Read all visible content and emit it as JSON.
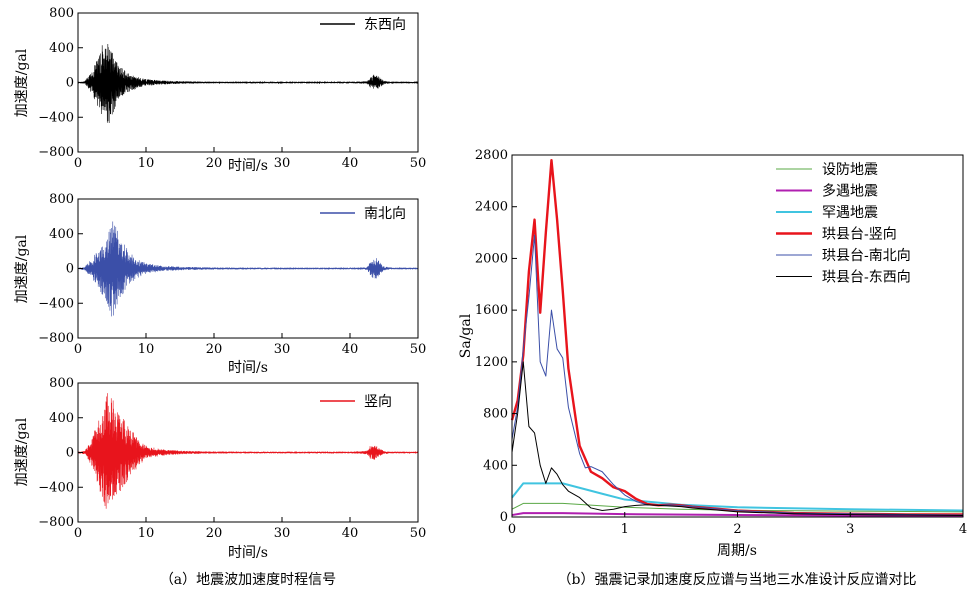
{
  "chart_data": [
    {
      "type": "line",
      "panel": "a",
      "xlabel": "时间/s",
      "ylabel": "加速度/gal",
      "xlim": [
        0,
        50
      ],
      "ylim": [
        -800,
        800
      ],
      "xticks": [
        "0",
        "10",
        "20",
        "30",
        "40",
        "50"
      ],
      "yticks": [
        "800",
        "400",
        "0",
        "−400",
        "−800"
      ],
      "series": [
        {
          "name": "东西向",
          "color": "#000000",
          "envelope": {
            "t": [
              0,
              1,
              2,
              3,
              3.5,
              4,
              4.5,
              5,
              5.5,
              6,
              7,
              8,
              9,
              10,
              12,
              15,
              20,
              30,
              40,
              42.5,
              43,
              43.5,
              44,
              44.5,
              45,
              46,
              50
            ],
            "amp": [
              8,
              15,
              120,
              300,
              430,
              450,
              520,
              380,
              280,
              200,
              130,
              90,
              60,
              40,
              25,
              15,
              10,
              8,
              8,
              15,
              60,
              90,
              80,
              50,
              20,
              10,
              8
            ]
          }
        },
        {
          "name": "南北向",
          "color": "#3b4fa8",
          "envelope": {
            "t": [
              0,
              1,
              2,
              3,
              4,
              4.5,
              5,
              5.5,
              6,
              7,
              8,
              9,
              10,
              12,
              15,
              20,
              30,
              40,
              42.5,
              43,
              43.5,
              44,
              44.5,
              45,
              46,
              50
            ],
            "amp": [
              8,
              20,
              110,
              220,
              380,
              470,
              610,
              500,
              380,
              260,
              160,
              100,
              60,
              35,
              20,
              12,
              10,
              8,
              15,
              80,
              120,
              120,
              60,
              25,
              10,
              8
            ]
          }
        },
        {
          "name": "竖向",
          "color": "#e8141c",
          "envelope": {
            "t": [
              0,
              1,
              2,
              3,
              3.5,
              4,
              4.5,
              5,
              5.5,
              6,
              7,
              8,
              9,
              10,
              12,
              15,
              20,
              30,
              40,
              42.5,
              43,
              43.5,
              44,
              44.5,
              45,
              46,
              50
            ],
            "amp": [
              8,
              20,
              150,
              380,
              520,
              640,
              740,
              660,
              560,
              480,
              360,
              250,
              150,
              80,
              40,
              20,
              12,
              10,
              10,
              20,
              80,
              90,
              70,
              40,
              20,
              10,
              8
            ]
          }
        }
      ],
      "caption": "（a）地震波加速度时程信号"
    },
    {
      "type": "line",
      "panel": "b",
      "xlabel": "周期/s",
      "ylabel": "Sa/gal",
      "xlim": [
        0,
        4
      ],
      "ylim": [
        0,
        2800
      ],
      "xticks": [
        "0",
        "1",
        "2",
        "3",
        "4"
      ],
      "yticks": [
        "0",
        "400",
        "800",
        "1200",
        "1600",
        "2000",
        "2400",
        "2800"
      ],
      "legend_position": "top-right",
      "series": [
        {
          "name": "设防地震",
          "color": "#5aa846",
          "width": 1,
          "x": [
            0,
            0.1,
            0.45,
            1.0,
            1.5,
            2.0,
            3.0,
            4.0
          ],
          "y": [
            60,
            105,
            105,
            75,
            60,
            52,
            45,
            40
          ]
        },
        {
          "name": "多遇地震",
          "color": "#b01fb0",
          "width": 2,
          "x": [
            0,
            0.1,
            0.45,
            1.0,
            2.0,
            3.0,
            4.0
          ],
          "y": [
            15,
            30,
            30,
            22,
            15,
            12,
            10
          ]
        },
        {
          "name": "罕遇地震",
          "color": "#40c4e0",
          "width": 2,
          "x": [
            0,
            0.1,
            0.45,
            0.8,
            1.0,
            1.5,
            2.0,
            3.0,
            4.0
          ],
          "y": [
            150,
            260,
            260,
            180,
            135,
            95,
            75,
            60,
            50
          ]
        },
        {
          "name": "珙县台-竖向",
          "color": "#e8141c",
          "width": 2.4,
          "x": [
            0,
            0.05,
            0.1,
            0.15,
            0.2,
            0.25,
            0.3,
            0.35,
            0.4,
            0.45,
            0.5,
            0.6,
            0.7,
            0.8,
            0.9,
            1.0,
            1.1,
            1.2,
            1.3,
            1.4,
            1.5,
            1.6,
            1.8,
            2.0,
            2.5,
            3.0,
            3.5,
            4.0
          ],
          "y": [
            750,
            900,
            1250,
            1900,
            2300,
            1580,
            2200,
            2760,
            2300,
            1750,
            1150,
            550,
            350,
            300,
            230,
            200,
            140,
            100,
            90,
            95,
            90,
            80,
            65,
            50,
            30,
            25,
            20,
            20
          ]
        },
        {
          "name": "珙县台-南北向",
          "color": "#3b4fa8",
          "width": 1,
          "x": [
            0,
            0.05,
            0.1,
            0.15,
            0.2,
            0.25,
            0.3,
            0.35,
            0.4,
            0.45,
            0.5,
            0.6,
            0.65,
            0.7,
            0.8,
            0.9,
            1.0,
            1.1,
            1.2,
            1.3,
            1.4,
            1.5,
            1.6,
            1.8,
            2.0,
            2.5,
            3.0,
            3.5,
            4.0
          ],
          "y": [
            600,
            850,
            1300,
            1700,
            2180,
            1200,
            1090,
            1600,
            1300,
            1230,
            850,
            490,
            380,
            390,
            350,
            250,
            170,
            120,
            95,
            90,
            95,
            90,
            80,
            65,
            50,
            30,
            25,
            20,
            15
          ]
        },
        {
          "name": "珙县台-东西向",
          "color": "#000000",
          "width": 1,
          "x": [
            0,
            0.05,
            0.1,
            0.15,
            0.2,
            0.25,
            0.3,
            0.35,
            0.4,
            0.45,
            0.5,
            0.6,
            0.7,
            0.8,
            0.9,
            1.0,
            1.1,
            1.2,
            1.3,
            1.4,
            1.5,
            1.6,
            1.8,
            2.0,
            2.5,
            3.0,
            3.5,
            4.0
          ],
          "y": [
            500,
            800,
            1200,
            700,
            650,
            400,
            260,
            380,
            330,
            250,
            200,
            150,
            70,
            50,
            60,
            80,
            90,
            95,
            90,
            85,
            80,
            70,
            55,
            40,
            25,
            18,
            15,
            12
          ]
        }
      ],
      "caption": "（b）强震记录加速度反应谱与当地三水准设计反应谱对比"
    }
  ]
}
